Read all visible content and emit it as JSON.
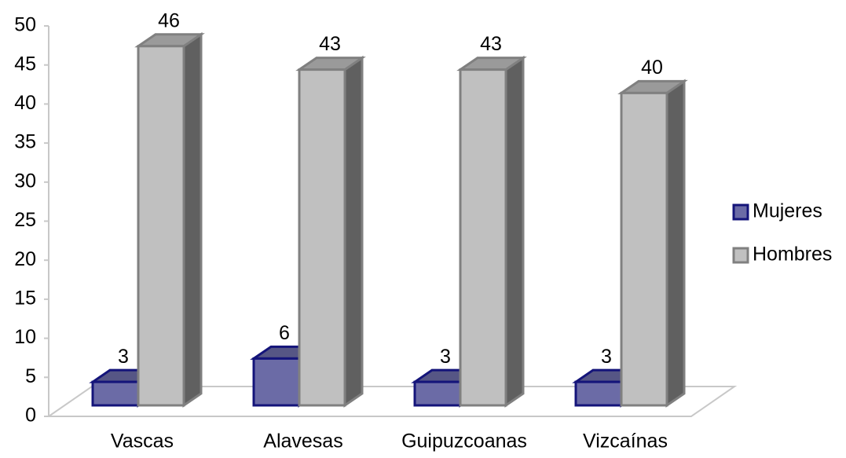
{
  "chart_data": {
    "type": "bar3d",
    "categories": [
      "Vascas",
      "Alavesas",
      "Guipuzcoanas",
      "Vizcaínas"
    ],
    "series": [
      {
        "name": "Mujeres",
        "color": "#6b6ba6",
        "values": [
          3,
          6,
          3,
          3
        ]
      },
      {
        "name": "Hombres",
        "color": "#c0c0c0",
        "values": [
          46,
          43,
          43,
          40
        ]
      }
    ],
    "ylim": [
      0,
      50
    ],
    "yticks": [
      0,
      5,
      10,
      15,
      20,
      25,
      30,
      35,
      40,
      45,
      50
    ],
    "legend": "right"
  }
}
